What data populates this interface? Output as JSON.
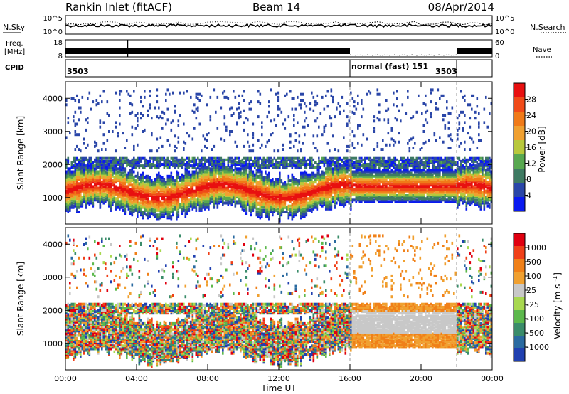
{
  "header": {
    "station": "Rankin Inlet (fitACF)",
    "beam": "Beam 14",
    "date": "08/Apr/2014"
  },
  "noise_panel": {
    "left_label": "N.Sky",
    "left_ticks": [
      "10^5",
      "10^0"
    ],
    "right_ticks": [
      "10^5",
      "10^0"
    ],
    "right_label": "N.Search"
  },
  "freq_panel": {
    "label_line1": "Freq.",
    "label_line2": "[MHz]",
    "left_ticks": [
      "18",
      "8"
    ],
    "right_ticks": [
      "60",
      "0"
    ],
    "right_label": "Nave"
  },
  "cpid_panel": {
    "label": "CPID",
    "segments": [
      {
        "text": "3503",
        "start_hour": 0
      },
      {
        "text": "normal (fast) 151",
        "start_hour": 16
      },
      {
        "text": "3503",
        "start_hour": 22
      }
    ]
  },
  "chart_data": [
    {
      "type": "heatmap",
      "name": "power",
      "ylabel": "Slant Range [km]",
      "ylim": [
        200,
        4500
      ],
      "yticks": [
        "1000",
        "2000",
        "3000",
        "4000"
      ],
      "xlim_hours": [
        0,
        24
      ],
      "colorbar": {
        "label": "Power [dB]",
        "ticks": [
          "4",
          "8",
          "12",
          "16",
          "20",
          "24",
          "28"
        ],
        "colors": [
          "#0a1af0",
          "#2a46a8",
          "#3e7a62",
          "#58a850",
          "#b8c83c",
          "#f0a030",
          "#f07a18",
          "#f04a18",
          "#e81010"
        ]
      }
    },
    {
      "type": "heatmap",
      "name": "velocity",
      "ylabel": "Slant Range [km]",
      "ylim": [
        200,
        4500
      ],
      "yticks": [
        "1000",
        "2000",
        "3000",
        "4000"
      ],
      "xlim_hours": [
        0,
        24
      ],
      "colorbar": {
        "label": "Velocity [m s^-1]",
        "ticks": [
          "1000",
          "500",
          "100",
          "25",
          "-25",
          "-100",
          "-500",
          "-1000"
        ],
        "colors": [
          "#2040b0",
          "#2a6aa0",
          "#3a8c6a",
          "#5cb84c",
          "#a8d850",
          "#c8c8c8",
          "#f0a030",
          "#f08018",
          "#f04018",
          "#e00010"
        ]
      }
    }
  ],
  "xaxis": {
    "label": "Time UT",
    "ticks": [
      "00:00",
      "04:00",
      "08:00",
      "12:00",
      "16:00",
      "20:00",
      "00:00"
    ],
    "tick_hours": [
      0,
      4,
      8,
      12,
      16,
      20,
      24
    ]
  }
}
